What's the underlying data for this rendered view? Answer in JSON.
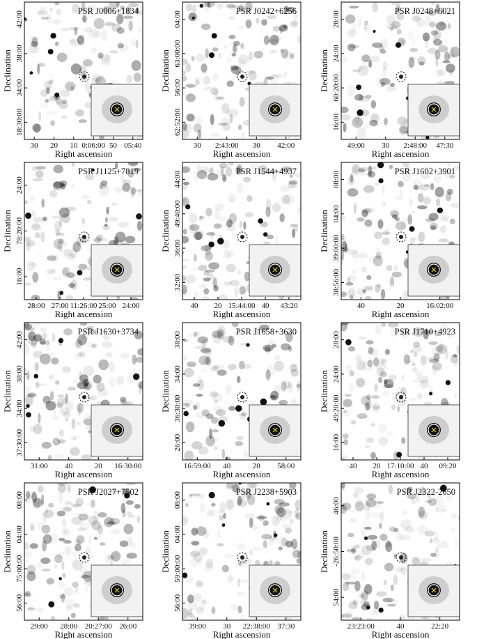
{
  "panels": [
    {
      "title": "PSR J0006+1834",
      "yticks": [
        "42:00",
        "38:00",
        "34:00",
        "18:30:00"
      ],
      "xticks": [
        "30",
        "20",
        "10",
        "0:06:00",
        "50",
        "05:40"
      ],
      "ylabel": "Declination",
      "xlabel": "Right ascension"
    },
    {
      "title": "PSR J0242+6256",
      "yticks": [
        "04:00",
        "63:00:00",
        "56:00",
        "62:52:00"
      ],
      "xticks": [
        "30",
        "2:43:00",
        "30",
        "42:00"
      ],
      "ylabel": "Declination",
      "xlabel": "Right ascension"
    },
    {
      "title": "PSR J0248+6021",
      "yticks": [
        "28:00",
        "24:00",
        "60:20:00",
        "16:00"
      ],
      "xticks": [
        "49:00",
        "30",
        "2:48:00",
        "47:30"
      ],
      "ylabel": "Declination",
      "xlabel": "Right ascension"
    },
    {
      "title": "PSR J1125+7819",
      "yticks": [
        "24:00",
        "78:20:00",
        "16:00"
      ],
      "xticks": [
        "28:00",
        "27:00",
        "11:26:00",
        "25:00",
        "24:00"
      ],
      "ylabel": "Declination",
      "xlabel": "Right ascension"
    },
    {
      "title": "PSR J1544+4937",
      "yticks": [
        "44:00",
        "49:40:00",
        "36:00",
        "32:00"
      ],
      "xticks": [
        "40",
        "20",
        "15:44:00",
        "40",
        "43:20"
      ],
      "ylabel": "Declination",
      "xlabel": "Right ascension"
    },
    {
      "title": "PSR J1602+3901",
      "yticks": [
        "08:00",
        "04:00",
        "39:00:00",
        "38:56:00"
      ],
      "xticks": [
        "40",
        "20",
        "16:02:00"
      ],
      "ylabel": "Declination",
      "xlabel": "Right ascension"
    },
    {
      "title": "PSR J1630+3734",
      "yticks": [
        "42:00",
        "38:00",
        "34:00",
        "37:30:00"
      ],
      "xticks": [
        "31:00",
        "40",
        "20",
        "16:30:00"
      ],
      "ylabel": "Declination",
      "xlabel": "Right ascension"
    },
    {
      "title": "PSR J1658+3630",
      "yticks": [
        "38:00",
        "34:00",
        "36:30:00",
        "26:00"
      ],
      "xticks": [
        "16:59:00",
        "40",
        "20",
        "58:00"
      ],
      "ylabel": "Declination",
      "xlabel": "Right ascension"
    },
    {
      "title": "PSR J1710+4923",
      "yticks": [
        "28:00",
        "24:00",
        "49:20:00",
        "16:00"
      ],
      "xticks": [
        "40",
        "20",
        "17:10:00",
        "40",
        "09:20"
      ],
      "ylabel": "Declination",
      "xlabel": "Right ascension"
    },
    {
      "title": "PSR J2027+7502",
      "yticks": [
        "08:00",
        "04:00",
        "75:00:00",
        "56:00"
      ],
      "xticks": [
        "29:00",
        "28:00",
        "20:27:00",
        "26:00"
      ],
      "ylabel": "Declination",
      "xlabel": "Right ascension"
    },
    {
      "title": "PSR J2238+5903",
      "yticks": [
        "08:00",
        "04:00",
        "59:00:00",
        "56:00"
      ],
      "xticks": [
        "39:00",
        "30",
        "22:38:00",
        "37:30"
      ],
      "ylabel": "Declination",
      "xlabel": "Right ascension"
    },
    {
      "title": "PSR J2322-2650",
      "yticks": [
        "46:00",
        "-26:50:00",
        "54:00"
      ],
      "xticks": [
        "23:23:00",
        "40",
        "22:20"
      ],
      "ylabel": "Declination",
      "xlabel": "Right ascension"
    }
  ]
}
